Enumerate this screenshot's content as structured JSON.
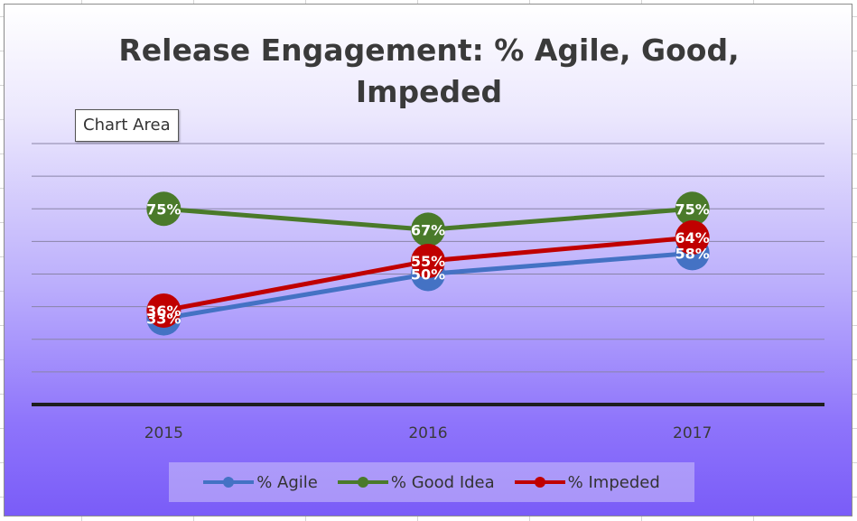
{
  "tooltip": "Chart Area",
  "chart_data": {
    "type": "line",
    "title_lines": [
      "Release Engagement: % Agile, Good,",
      "Impeded"
    ],
    "categories": [
      "2015",
      "2016",
      "2017"
    ],
    "ylim": [
      0,
      100
    ],
    "grid": true,
    "legend_position": "bottom",
    "series": [
      {
        "name": "% Agile",
        "values": [
          33,
          50,
          58
        ],
        "labels": [
          "33%",
          "50%",
          "58%"
        ],
        "color": "#4472c4"
      },
      {
        "name": "% Good Idea",
        "values": [
          75,
          67,
          75
        ],
        "labels": [
          "75%",
          "67%",
          "75%"
        ],
        "color": "#4a7a2a"
      },
      {
        "name": "% Impeded",
        "values": [
          36,
          55,
          64
        ],
        "labels": [
          "36%",
          "55%",
          "64%"
        ],
        "color": "#c00000"
      }
    ]
  }
}
